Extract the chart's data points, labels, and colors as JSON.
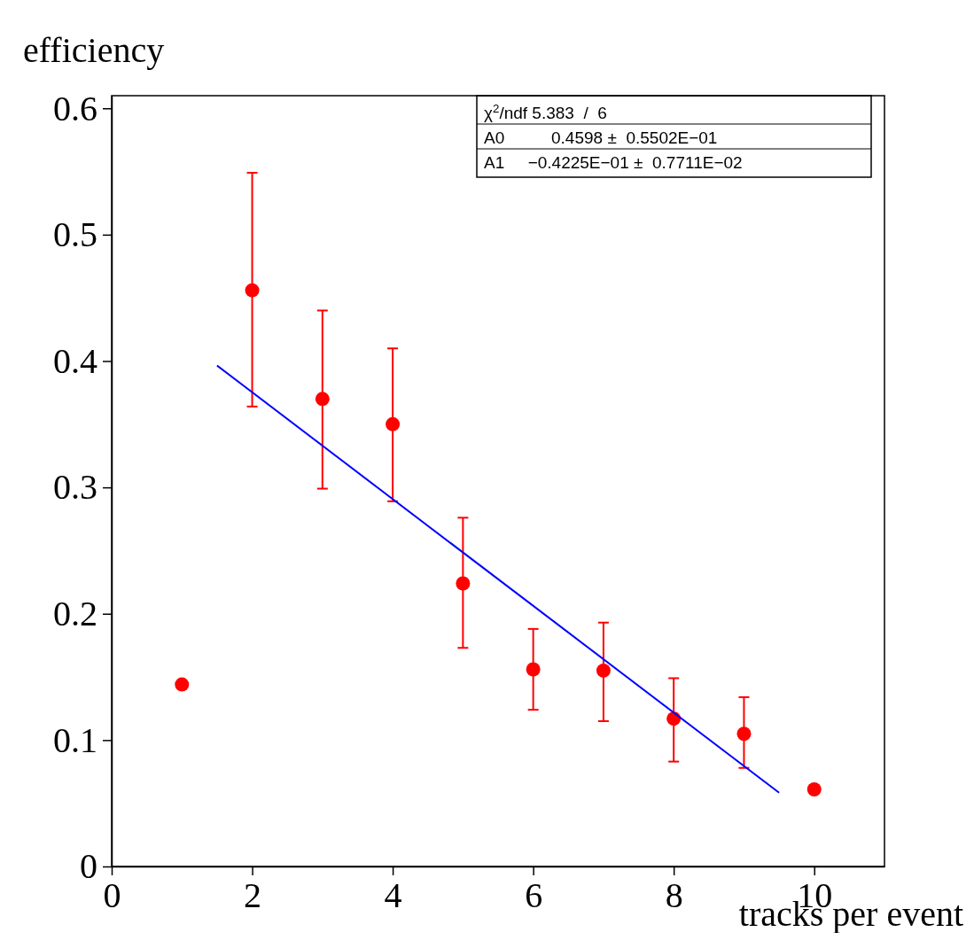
{
  "chart_data": {
    "type": "scatter",
    "xlabel": "tracks per event",
    "ylabel": "efficiency",
    "xlim": [
      0,
      11
    ],
    "ylim": [
      0,
      0.61
    ],
    "xticks": [
      0,
      2,
      4,
      6,
      8,
      10
    ],
    "yticks": [
      0,
      0.1,
      0.2,
      0.3,
      0.4,
      0.5,
      0.6
    ],
    "grid": false,
    "marker": "circle",
    "annotations": [
      "χ$^{2}$/ndf 5.383  /  6",
      "A0          0.4598 ±  0.5502E−01",
      "A1     −0.4225E−01 ±  0.7711E−02"
    ],
    "series": [
      {
        "color": "#ff0000",
        "x": [
          1,
          2,
          3,
          4,
          5,
          6,
          7,
          8,
          9,
          10
        ],
        "values": [
          0.144,
          0.456,
          0.37,
          0.35,
          0.224,
          0.156,
          0.155,
          0.117,
          0.105,
          0.061
        ],
        "errors": [
          null,
          [
            0.364,
            0.549
          ],
          [
            0.299,
            0.44
          ],
          [
            0.289,
            0.41
          ],
          [
            0.173,
            0.276
          ],
          [
            0.124,
            0.188
          ],
          [
            0.115,
            0.193
          ],
          [
            0.083,
            0.149
          ],
          [
            0.078,
            0.134
          ],
          null
        ]
      },
      {
        "type": "line",
        "color": "#0000ff",
        "line_style": "solid",
        "marker": "none",
        "x": [
          1.5,
          9.5
        ],
        "values": [
          0.3964,
          0.0584
        ]
      }
    ]
  }
}
